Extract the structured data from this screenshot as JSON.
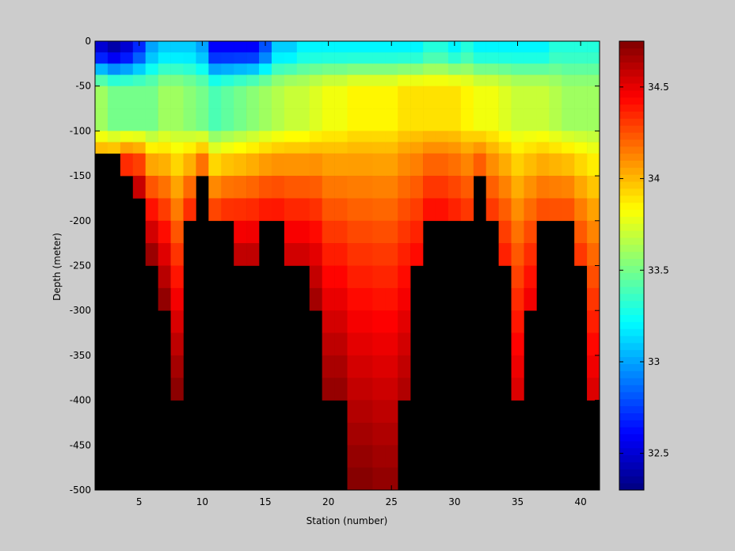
{
  "chart_data": {
    "type": "heatmap",
    "title": "",
    "xlabel": "Station (number)",
    "ylabel": "Depth (meter)",
    "x_ticks": [
      "5",
      "10",
      "15",
      "20",
      "25",
      "30",
      "35",
      "40"
    ],
    "y_ticks": [
      "0",
      "-50",
      "-100",
      "-150",
      "-200",
      "-250",
      "-300",
      "-350",
      "-400",
      "-450",
      "-500"
    ],
    "colorbar_ticks": [
      "32.5",
      "33",
      "33.5",
      "34",
      "34.5"
    ],
    "xlim": [
      1.5,
      41.5
    ],
    "ylim": [
      -500,
      0
    ],
    "clim": [
      32.3,
      34.75
    ],
    "colormap": "jet",
    "no_data_color": "#000000",
    "stations": [
      2,
      3,
      4,
      5,
      6,
      7,
      8,
      9,
      10,
      11,
      12,
      13,
      14,
      15,
      16,
      17,
      18,
      19,
      20,
      21,
      22,
      23,
      24,
      25,
      26,
      27,
      28,
      29,
      30,
      31,
      32,
      33,
      34,
      35,
      36,
      37,
      38,
      39,
      40,
      41
    ],
    "depth_bin_tops": [
      0,
      -12.5,
      -25,
      -37.5,
      -50,
      -62.5,
      -75,
      -87.5,
      -100,
      -112.5,
      -125,
      -150,
      -175,
      -200,
      -225,
      -250,
      -275,
      -300,
      -325,
      -350,
      -375,
      -400,
      -425,
      -450,
      -475
    ],
    "depth_bin_bottoms": [
      -12.5,
      -25,
      -37.5,
      -50,
      -62.5,
      -75,
      -87.5,
      -100,
      -112.5,
      -125,
      -150,
      -175,
      -200,
      -225,
      -250,
      -275,
      -300,
      -325,
      -350,
      -375,
      -400,
      -425,
      -450,
      -475,
      -500
    ],
    "max_depth_by_station": [
      -125,
      -125,
      -150,
      -175,
      -250,
      -300,
      -400,
      -200,
      -150,
      -200,
      -200,
      -250,
      -250,
      -200,
      -200,
      -250,
      -250,
      -300,
      -400,
      -400,
      -500,
      -500,
      -500,
      -500,
      -400,
      -250,
      -200,
      -200,
      -200,
      -200,
      -150,
      -200,
      -250,
      -400,
      -300,
      -200,
      -200,
      -200,
      -250,
      -400
    ],
    "salinity_profiles": {
      "surface_by_station": [
        32.5,
        32.4,
        32.5,
        32.7,
        33.0,
        33.1,
        33.1,
        33.1,
        33.0,
        32.6,
        32.6,
        32.6,
        32.6,
        32.8,
        33.1,
        33.1,
        33.2,
        33.2,
        33.2,
        33.2,
        33.2,
        33.2,
        33.2,
        33.2,
        33.2,
        33.2,
        33.3,
        33.3,
        33.2,
        33.3,
        33.2,
        33.2,
        33.2,
        33.2,
        33.2,
        33.2,
        33.3,
        33.3,
        33.3,
        33.3
      ],
      "thermocline_min_by_station": [
        33.6,
        33.5,
        33.5,
        33.5,
        33.5,
        33.6,
        33.6,
        33.55,
        33.5,
        33.4,
        33.45,
        33.5,
        33.55,
        33.6,
        33.65,
        33.7,
        33.7,
        33.75,
        33.8,
        33.8,
        33.85,
        33.85,
        33.85,
        33.85,
        33.9,
        33.9,
        33.9,
        33.9,
        33.9,
        33.85,
        33.8,
        33.8,
        33.75,
        33.7,
        33.7,
        33.7,
        33.65,
        33.6,
        33.6,
        33.6
      ],
      "bottom_by_station": [
        34.3,
        34.35,
        34.5,
        34.7,
        34.75,
        34.75,
        34.75,
        34.4,
        34.3,
        34.35,
        34.4,
        34.65,
        34.65,
        34.45,
        34.45,
        34.6,
        34.6,
        34.7,
        34.72,
        34.72,
        34.75,
        34.75,
        34.72,
        34.72,
        34.65,
        34.45,
        34.45,
        34.45,
        34.4,
        34.35,
        34.3,
        34.35,
        34.4,
        34.55,
        34.5,
        34.3,
        34.3,
        34.3,
        34.35,
        34.55
      ]
    }
  }
}
